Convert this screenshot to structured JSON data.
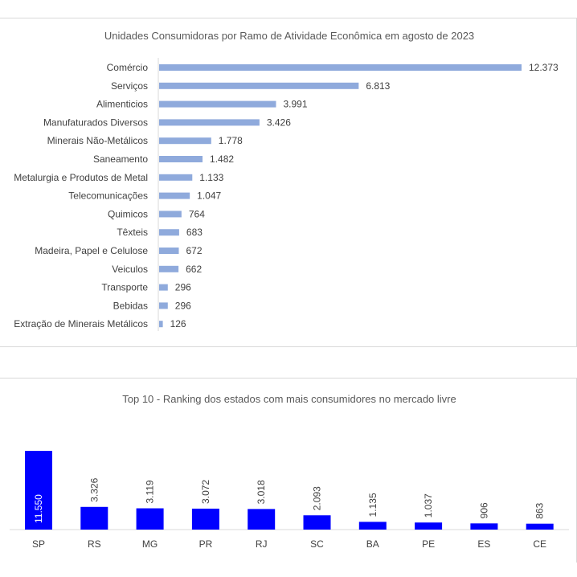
{
  "chart_data": [
    {
      "type": "bar",
      "orientation": "horizontal",
      "title": "Unidades Consumidoras por Ramo de Atividade Econômica em agosto de 2023",
      "categories": [
        "Comércio",
        "Serviços",
        "Alimenticios",
        "Manufaturados Diversos",
        "Minerais Não-Metálicos",
        "Saneamento",
        "Metalurgia e Produtos de Metal",
        "Telecomunicações",
        "Quimicos",
        "Têxteis",
        "Madeira, Papel e Celulose",
        "Veiculos",
        "Transporte",
        "Bebidas",
        "Extração de Minerais Metálicos"
      ],
      "values": [
        12373,
        6813,
        3991,
        3426,
        1778,
        1482,
        1133,
        1047,
        764,
        683,
        672,
        662,
        296,
        296,
        126
      ],
      "value_labels": [
        "12.373",
        "6.813",
        "3.991",
        "3.426",
        "1.778",
        "1.482",
        "1.133",
        "1.047",
        "764",
        "683",
        "672",
        "662",
        "296",
        "296",
        "126"
      ],
      "color": "#8faadc",
      "grid": false
    },
    {
      "type": "bar",
      "orientation": "vertical",
      "title": "Top 10 - Ranking dos estados com mais consumidores no mercado livre",
      "categories": [
        "SP",
        "RS",
        "MG",
        "PR",
        "RJ",
        "SC",
        "BA",
        "PE",
        "ES",
        "CE"
      ],
      "values": [
        11550,
        3326,
        3119,
        3072,
        3018,
        2093,
        1135,
        1037,
        906,
        863
      ],
      "value_labels": [
        "11.550",
        "3.326",
        "3.119",
        "3.072",
        "3.018",
        "2.093",
        "1.135",
        "1.037",
        "906",
        "863"
      ],
      "color": "#0000ff",
      "grid": false
    }
  ]
}
